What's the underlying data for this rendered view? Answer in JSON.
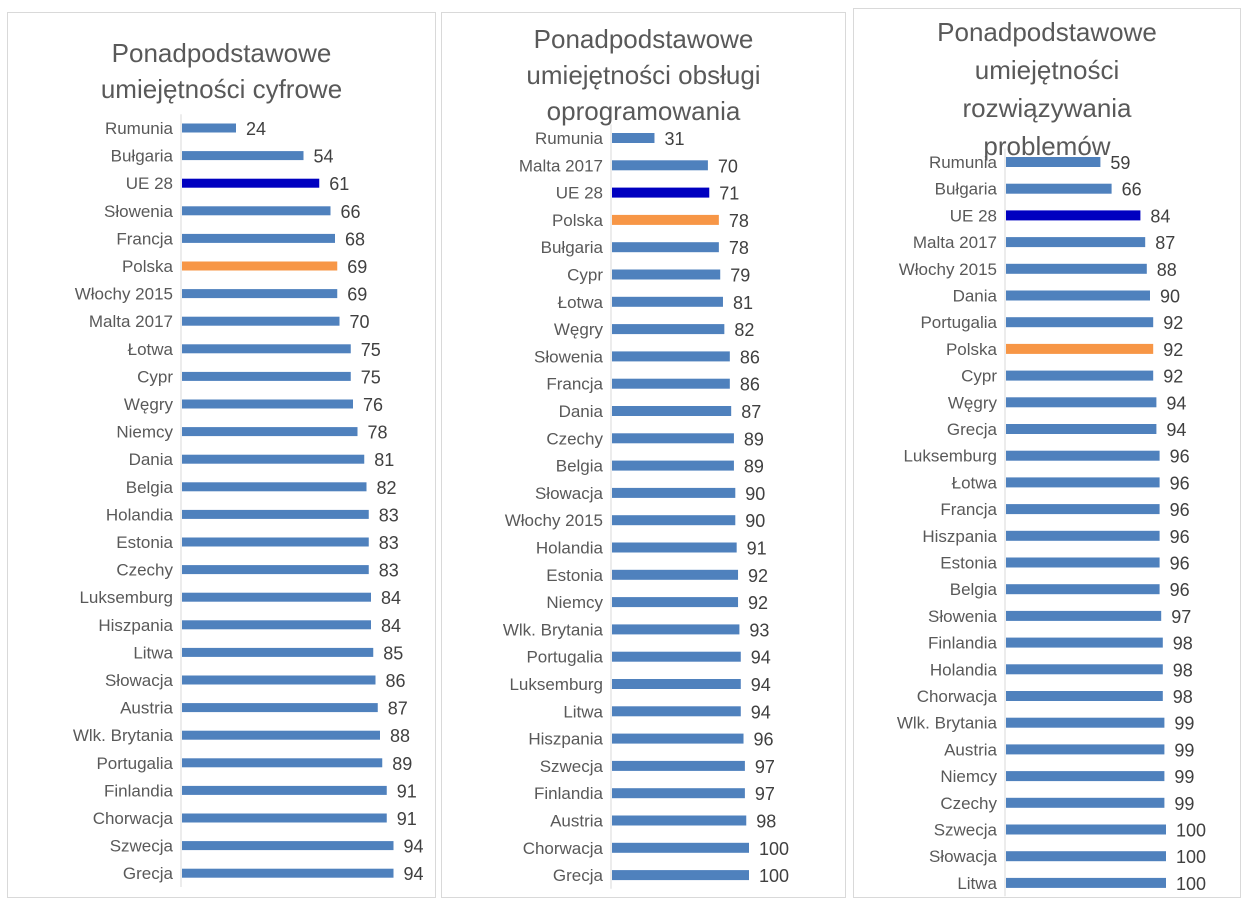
{
  "colors": {
    "default": "#4f81bd",
    "eu": "#0000c0",
    "poland": "#f79646"
  },
  "chart_data": [
    {
      "type": "bar",
      "orientation": "horizontal",
      "title": "Ponadpodstawowe umiejętności cyfrowe",
      "title_lines": [
        "Ponadpodstawowe",
        "umiejętności cyfrowe"
      ],
      "xlim": [
        0,
        100
      ],
      "categories": [
        "Rumunia",
        "Bułgaria",
        "UE 28",
        "Słowenia",
        "Francja",
        "Polska",
        "Włochy 2015",
        "Malta 2017",
        "Łotwa",
        "Cypr",
        "Węgry",
        "Niemcy",
        "Dania",
        "Belgia",
        "Holandia",
        "Estonia",
        "Czechy",
        "Luksemburg",
        "Hiszpania",
        "Litwa",
        "Słowacja",
        "Austria",
        "Wlk. Brytania",
        "Portugalia",
        "Finlandia",
        "Chorwacja",
        "Szwecja",
        "Grecja"
      ],
      "values": [
        24,
        54,
        61,
        66,
        68,
        69,
        69,
        70,
        75,
        75,
        76,
        78,
        81,
        82,
        83,
        83,
        83,
        84,
        84,
        85,
        86,
        87,
        88,
        89,
        91,
        91,
        94,
        94
      ],
      "highlight": {
        "UE 28": "eu",
        "Polska": "poland"
      }
    },
    {
      "type": "bar",
      "orientation": "horizontal",
      "title": "Ponadpodstawowe umiejętności obsługi oprogramowania",
      "title_lines": [
        "Ponadpodstawowe",
        "umiejętności obsługi",
        "oprogramowania"
      ],
      "xlim": [
        0,
        100
      ],
      "categories": [
        "Rumunia",
        "Malta 2017",
        "UE 28",
        "Polska",
        "Bułgaria",
        "Cypr",
        "Łotwa",
        "Węgry",
        "Słowenia",
        "Francja",
        "Dania",
        "Czechy",
        "Belgia",
        "Słowacja",
        "Włochy 2015",
        "Holandia",
        "Estonia",
        "Niemcy",
        "Wlk. Brytania",
        "Portugalia",
        "Luksemburg",
        "Litwa",
        "Hiszpania",
        "Szwecja",
        "Finlandia",
        "Austria",
        "Chorwacja",
        "Grecja"
      ],
      "values": [
        31,
        70,
        71,
        78,
        78,
        79,
        81,
        82,
        86,
        86,
        87,
        89,
        89,
        90,
        90,
        91,
        92,
        92,
        93,
        94,
        94,
        94,
        96,
        97,
        97,
        98,
        100,
        100
      ],
      "highlight": {
        "UE 28": "eu",
        "Polska": "poland"
      }
    },
    {
      "type": "bar",
      "orientation": "horizontal",
      "title": "Ponadpodstawowe umiejętności rozwiązywania problemów",
      "title_lines": [
        "Ponadpodstawowe",
        "umiejętności",
        "rozwiązywania",
        "problemów"
      ],
      "xlim": [
        0,
        100
      ],
      "categories": [
        "Rumunia",
        "Bułgaria",
        "UE 28",
        "Malta 2017",
        "Włochy 2015",
        "Dania",
        "Portugalia",
        "Polska",
        "Cypr",
        "Węgry",
        "Grecja",
        "Luksemburg",
        "Łotwa",
        "Francja",
        "Hiszpania",
        "Estonia",
        "Belgia",
        "Słowenia",
        "Finlandia",
        "Holandia",
        "Chorwacja",
        "Wlk. Brytania",
        "Austria",
        "Niemcy",
        "Czechy",
        "Szwecja",
        "Słowacja",
        "Litwa"
      ],
      "values": [
        59,
        66,
        84,
        87,
        88,
        90,
        92,
        92,
        92,
        94,
        94,
        96,
        96,
        96,
        96,
        96,
        96,
        97,
        98,
        98,
        98,
        99,
        99,
        99,
        99,
        100,
        100,
        100
      ],
      "highlight": {
        "UE 28": "eu",
        "Polska": "poland"
      }
    }
  ]
}
